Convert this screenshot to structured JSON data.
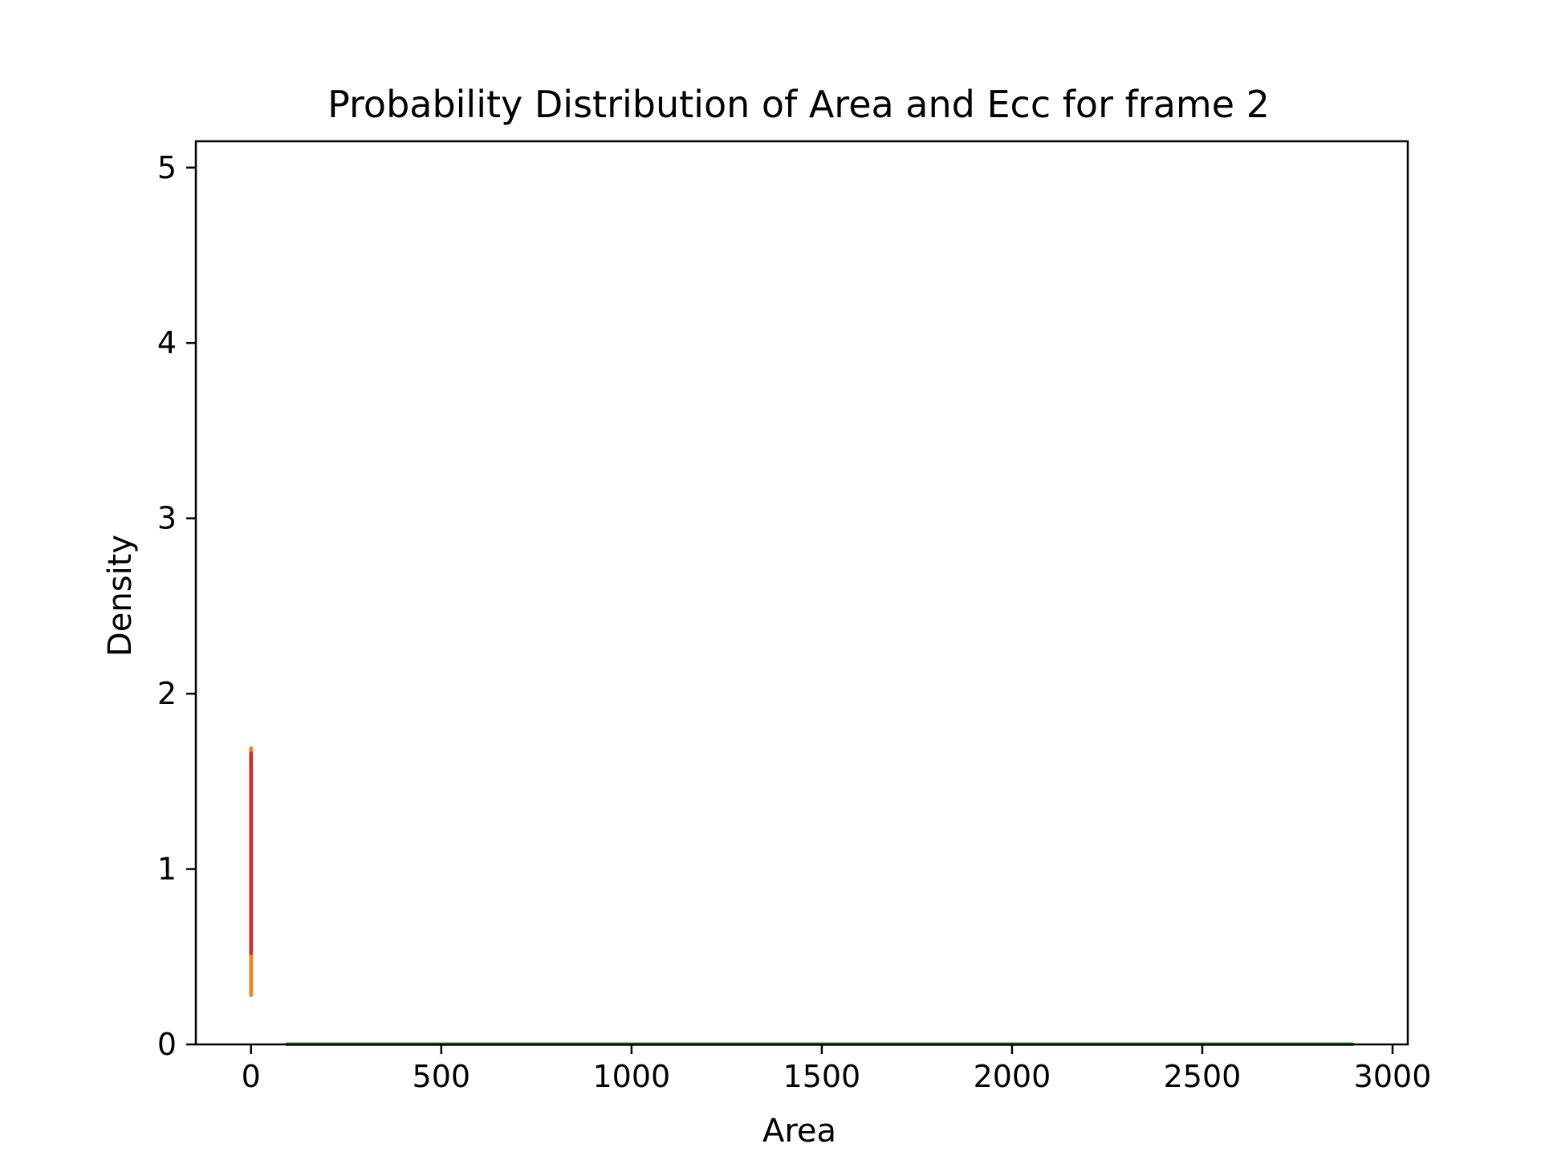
{
  "chart_data": {
    "type": "line",
    "title": "Probability Distribution of Area and Ecc for frame 2",
    "xlabel": "Area",
    "ylabel": "Density",
    "xlim": [
      -145,
      3040
    ],
    "ylim": [
      0,
      5.15
    ],
    "xticks": [
      0,
      500,
      1000,
      1500,
      2000,
      2500,
      3000
    ],
    "yticks": [
      0,
      1,
      2,
      3,
      4,
      5
    ],
    "grid": false,
    "legend": false,
    "series": [
      {
        "color": "#1f77b4",
        "x": [
          95,
          2895
        ],
        "y": [
          0.001,
          0.001
        ]
      },
      {
        "color": "#2ca02c",
        "x": [
          95,
          2895
        ],
        "y": [
          0.001,
          0.001
        ]
      },
      {
        "color": "#ff7f0e",
        "x": [
          0,
          0
        ],
        "y": [
          0.28,
          1.69
        ]
      },
      {
        "color": "#d62728",
        "x": [
          0,
          0
        ],
        "y": [
          0.52,
          1.66
        ]
      }
    ]
  }
}
